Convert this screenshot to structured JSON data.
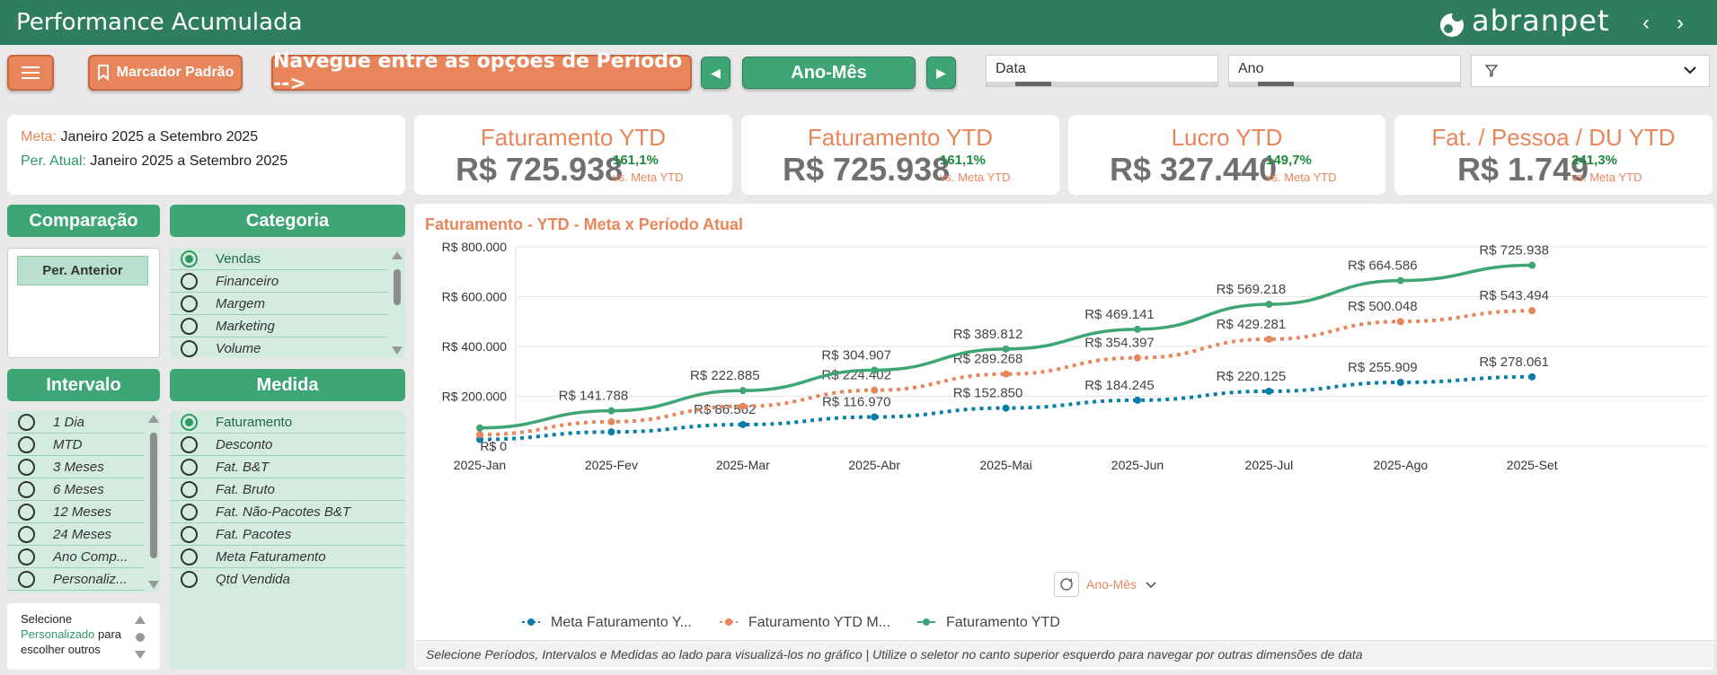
{
  "header": {
    "title": "Performance Acumulada",
    "logo_text": "abranpet",
    "prev_icon": "chevron-left-icon",
    "next_icon": "chevron-right-icon"
  },
  "toolbar": {
    "menu_icon": "hamburger-icon",
    "bookmark_label": "Marcador Padrão",
    "navigate_hint": "Navegue entre as opções de Período -->",
    "period_label": "Ano-Mês",
    "slicer_data": "Data",
    "slicer_ano": "Ano",
    "filter_icon": "filter-icon"
  },
  "period_info": {
    "meta_label": "Meta:",
    "meta_value": "Janeiro 2025 a Setembro 2025",
    "atual_label": "Per. Atual:",
    "atual_value": "Janeiro 2025 a Setembro 2025"
  },
  "kpis": [
    {
      "title": "Faturamento YTD",
      "value": "R$ 725.938",
      "pct": "161,1%",
      "sub": "vs. Meta YTD"
    },
    {
      "title": "Faturamento YTD",
      "value": "R$ 725.938",
      "pct": "161,1%",
      "sub": "vs. Meta YTD"
    },
    {
      "title": "Lucro YTD",
      "value": "R$ 327.440",
      "pct": "149,7%",
      "sub": "vs. Meta YTD"
    },
    {
      "title": "Fat. / Pessoa / DU YTD",
      "value": "R$ 1.749",
      "pct": "241,3%",
      "sub": "vs. Meta YTD"
    }
  ],
  "comparacao": {
    "header": "Comparação",
    "button": "Per. Anterior"
  },
  "categoria": {
    "header": "Categoria",
    "items": [
      "Vendas",
      "Financeiro",
      "Margem",
      "Marketing",
      "Volume"
    ],
    "selected": 0
  },
  "intervalo": {
    "header": "Intervalo",
    "items": [
      "1 Dia",
      "MTD",
      "3 Meses",
      "6 Meses",
      "12 Meses",
      "24 Meses",
      "Ano Comp...",
      "Personaliz..."
    ]
  },
  "medida": {
    "header": "Medida",
    "items": [
      "Faturamento",
      "Desconto",
      "Fat. B&T",
      "Fat. Bruto",
      "Fat. Não-Pacotes B&T",
      "Fat. Pacotes",
      "Meta Faturamento",
      "Qtd Vendida"
    ],
    "selected": 0
  },
  "hint": {
    "line1": "Selecione",
    "highlight": "Personalizado",
    "line2": " para",
    "line3": "escolher outros"
  },
  "chart_title": "Faturamento - YTD - Meta x Período Atual",
  "drill_label": "Ano-Mês",
  "footer_note": "Selecione Períodos, Intervalos e Medidas ao lado para visualizá-los no gráfico | Utilize o seletor no canto superior esquerdo para navegar por outras dimensões de data",
  "colors": {
    "green": "#3ea574",
    "orange": "#e8855b",
    "blue": "#0a7ea8",
    "dark_green": "#2e7d5e"
  },
  "chart_data": {
    "type": "line",
    "categories": [
      "2025-Jan",
      "2025-Fev",
      "2025-Mar",
      "2025-Abr",
      "2025-Mai",
      "2025-Jun",
      "2025-Jul",
      "2025-Ago",
      "2025-Set"
    ],
    "ylim": [
      0,
      800000
    ],
    "yticks": [
      0,
      200000,
      400000,
      600000,
      800000
    ],
    "ytick_labels": [
      "R$ 0",
      "R$ 200.000",
      "R$ 400.000",
      "R$ 600.000",
      "R$ 800.000"
    ],
    "grid": true,
    "legend_position": "bottom",
    "series": [
      {
        "name": "Meta Faturamento Y...",
        "color": "#0a7ea8",
        "style": "dotted",
        "values": [
          27000,
          57000,
          86562,
          116970,
          152850,
          184245,
          220125,
          255909,
          278061
        ],
        "labels": [
          "",
          "",
          "R$ 86.562",
          "R$ 116.970",
          "R$ 152.850",
          "R$ 184.245",
          "R$ 220.125",
          "R$ 255.909",
          "R$ 278.061"
        ]
      },
      {
        "name": "Faturamento YTD M...",
        "color": "#e8855b",
        "style": "dotted",
        "values": [
          46000,
          98000,
          160000,
          224402,
          289268,
          354397,
          429281,
          500048,
          543494
        ],
        "labels": [
          "",
          "",
          "",
          "R$ 224.402",
          "R$ 289.268",
          "R$ 354.397",
          "R$ 429.281",
          "R$ 500.048",
          "R$ 543.494"
        ]
      },
      {
        "name": "Faturamento YTD",
        "color": "#3ea574",
        "style": "solid",
        "values": [
          73000,
          141788,
          222885,
          304907,
          389812,
          469141,
          569218,
          664586,
          725938
        ],
        "labels": [
          "",
          "R$ 141.788",
          "R$ 222.885",
          "R$ 304.907",
          "R$ 389.812",
          "R$ 469.141",
          "R$ 569.218",
          "R$ 664.586",
          "R$ 725.938"
        ]
      }
    ]
  }
}
